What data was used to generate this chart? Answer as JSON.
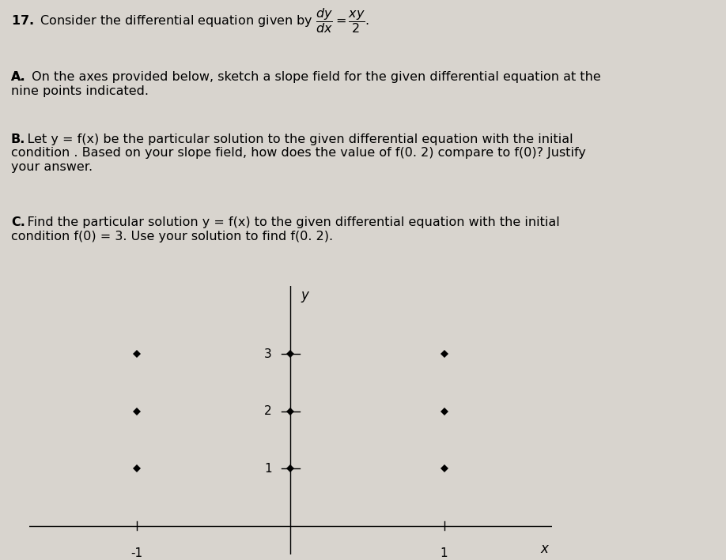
{
  "background_color": "#d8d4ce",
  "text_color": "#000000",
  "plot_background": "#d8d4ce",
  "tick_fontsize": 11,
  "label_fontsize": 12,
  "text_fontsize": 11.5,
  "grid_points_x": [
    -1,
    0,
    1
  ],
  "grid_points_y": [
    1,
    2,
    3
  ],
  "xlim": [
    -1.7,
    1.7
  ],
  "ylim": [
    -0.5,
    4.2
  ],
  "x_axis_label": "x",
  "y_axis_label": "y",
  "x_ticks_shown": [
    -1,
    1
  ],
  "x_tick_labels": [
    "-1",
    "1"
  ],
  "y_ticks_shown": [
    1,
    2,
    3
  ],
  "y_tick_labels": [
    "1",
    "2",
    "3"
  ],
  "point_markersize": 5
}
